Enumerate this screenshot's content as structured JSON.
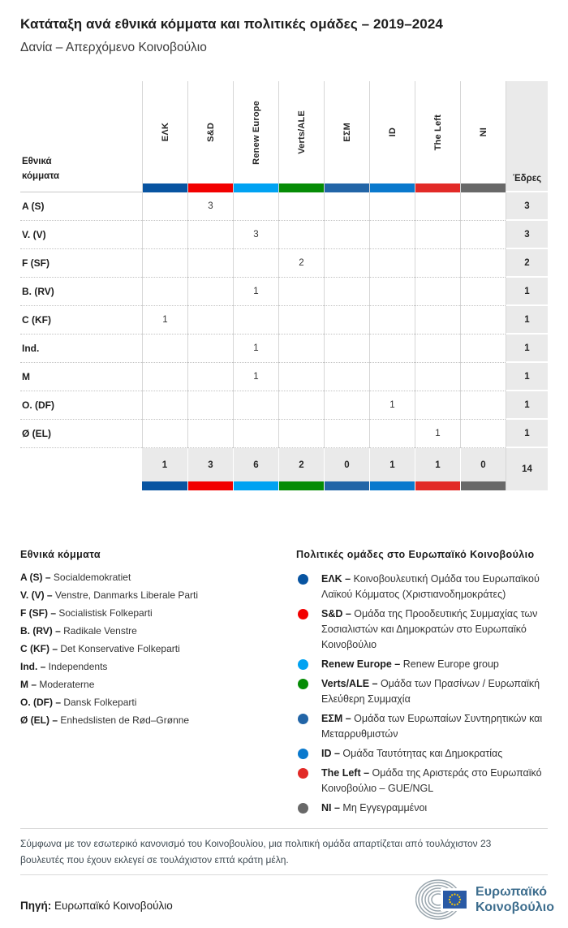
{
  "header": {
    "title": "Κατάταξη ανά εθνικά κόμματα και πολιτικές ομάδες – 2019–2024",
    "subtitle": "Δανία – Απερχόμενο Κοινοβούλιο"
  },
  "chart_data": {
    "type": "table",
    "title": "Κατάταξη ανά εθνικά κόμματα και πολιτικές ομάδες – 2019–2024",
    "subtitle": "Δανία – Απερχόμενο Κοινοβούλιο",
    "row_header_label": "Εθνικά κόμματα",
    "seats_column_label": "Έδρες",
    "groups": [
      {
        "name": "ΕΛΚ",
        "color": "#0854a1"
      },
      {
        "name": "S&D",
        "color": "#f20000"
      },
      {
        "name": "Renew Europe",
        "color": "#00a2f2"
      },
      {
        "name": "Verts/ALE",
        "color": "#068c06"
      },
      {
        "name": "ΕΣΜ",
        "color": "#2265a7"
      },
      {
        "name": "ID",
        "color": "#0a79cd"
      },
      {
        "name": "The Left",
        "color": "#e22a27"
      },
      {
        "name": "NI",
        "color": "#686868"
      }
    ],
    "rows": [
      {
        "party": "A (S)",
        "seats": [
          null,
          3,
          null,
          null,
          null,
          null,
          null,
          null
        ],
        "total": 3
      },
      {
        "party": "V. (V)",
        "seats": [
          null,
          null,
          3,
          null,
          null,
          null,
          null,
          null
        ],
        "total": 3
      },
      {
        "party": "F (SF)",
        "seats": [
          null,
          null,
          null,
          2,
          null,
          null,
          null,
          null
        ],
        "total": 2
      },
      {
        "party": "B. (RV)",
        "seats": [
          null,
          null,
          1,
          null,
          null,
          null,
          null,
          null
        ],
        "total": 1
      },
      {
        "party": "C (KF)",
        "seats": [
          1,
          null,
          null,
          null,
          null,
          null,
          null,
          null
        ],
        "total": 1
      },
      {
        "party": "Ind.",
        "seats": [
          null,
          null,
          1,
          null,
          null,
          null,
          null,
          null
        ],
        "total": 1
      },
      {
        "party": "M",
        "seats": [
          null,
          null,
          1,
          null,
          null,
          null,
          null,
          null
        ],
        "total": 1
      },
      {
        "party": "O. (DF)",
        "seats": [
          null,
          null,
          null,
          null,
          null,
          1,
          null,
          null
        ],
        "total": 1
      },
      {
        "party": "Ø (EL)",
        "seats": [
          null,
          null,
          null,
          null,
          null,
          null,
          1,
          null
        ],
        "total": 1
      }
    ],
    "totals": {
      "by_group": [
        1,
        3,
        6,
        2,
        0,
        1,
        1,
        0
      ],
      "grand_total": 14
    }
  },
  "legend_parties": {
    "heading": "Εθνικά κόμματα",
    "items": [
      {
        "abbr": "A (S)",
        "name": "Socialdemokratiet"
      },
      {
        "abbr": "V. (V)",
        "name": "Venstre, Danmarks Liberale Parti"
      },
      {
        "abbr": "F (SF)",
        "name": "Socialistisk Folkeparti"
      },
      {
        "abbr": "B. (RV)",
        "name": "Radikale Venstre"
      },
      {
        "abbr": "C (KF)",
        "name": "Det Konservative Folkeparti"
      },
      {
        "abbr": "Ind.",
        "name": "Independents"
      },
      {
        "abbr": "M",
        "name": "Moderaterne"
      },
      {
        "abbr": "O. (DF)",
        "name": "Dansk Folkeparti"
      },
      {
        "abbr": "Ø (EL)",
        "name": "Enhedslisten de Rød–Grønne"
      }
    ]
  },
  "legend_groups": {
    "heading": "Πολιτικές ομάδες στο Ευρωπαϊκό Κοινοβούλιο",
    "items": [
      {
        "abbr": "ΕΛΚ",
        "color": "#0854a1",
        "name": "Κοινοβουλευτική Ομάδα του Ευρωπαϊκού Λαϊκού Κόμματος (Χριστιανοδημοκράτες)"
      },
      {
        "abbr": "S&D",
        "color": "#f20000",
        "name": "Ομάδα της Προοδευτικής Συμμαχίας των Σοσιαλιστών και Δημοκρατών στο Ευρωπαϊκό Κοινοβούλιο"
      },
      {
        "abbr": "Renew Europe",
        "color": "#00a2f2",
        "name": "Renew Europe group"
      },
      {
        "abbr": "Verts/ALE",
        "color": "#068c06",
        "name": "Ομάδα των Πρασίνων / Ευρωπαϊκή Ελεύθερη Συμμαχία"
      },
      {
        "abbr": "ΕΣΜ",
        "color": "#2265a7",
        "name": "Ομάδα των Ευρωπαίων Συντηρητικών και Μεταρρυθμιστών"
      },
      {
        "abbr": "ID",
        "color": "#0a79cd",
        "name": "Ομάδα Ταυτότητας και Δημοκρατίας"
      },
      {
        "abbr": "The Left",
        "color": "#e22a27",
        "name": "Ομάδα της Αριστεράς στο Ευρωπαϊκό Κοινοβούλιο – GUE/NGL"
      },
      {
        "abbr": "NI",
        "color": "#686868",
        "name": "Μη Εγγεγραμμένοι"
      }
    ]
  },
  "footer": {
    "note": "Σύμφωνα με τον εσωτερικό κανονισμό του Κοινοβουλίου, μια πολιτική ομάδα απαρτίζεται από τουλάχιστον 23 βουλευτές που έχουν εκλεγεί σε τουλάχιστον επτά κράτη μέλη.",
    "source_label": "Πηγή:",
    "source_value": "Ευρωπαϊκό Κοινοβούλιο",
    "logo_line1": "Ευρωπαϊκό",
    "logo_line2": "Κοινοβούλιο"
  }
}
